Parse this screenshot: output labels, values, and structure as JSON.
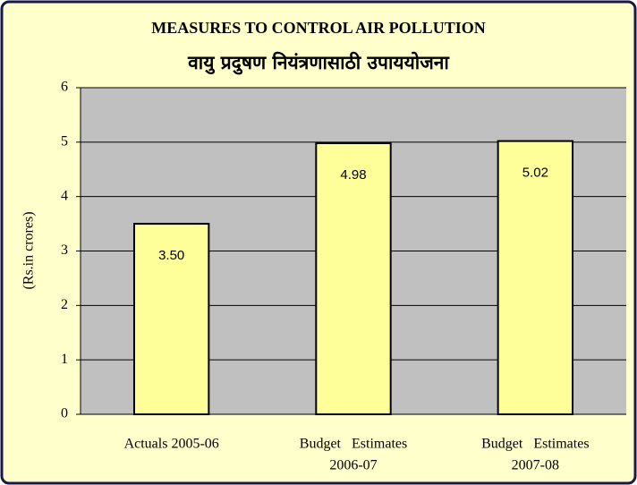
{
  "chart_data": {
    "type": "bar",
    "title": "MEASURES TO CONTROL AIR POLLUTION",
    "subtitle": "वायु प्रदुषण नियंत्रणासाठी उपाययोजना",
    "y_label": "(Rs.in crores)",
    "categories": [
      [
        "Actuals 2005-06"
      ],
      [
        "Budget   Estimates",
        "2006-07"
      ],
      [
        "Budget   Estimates",
        "2007-08"
      ]
    ],
    "values": [
      3.5,
      4.98,
      5.02
    ],
    "value_labels": [
      "3.50",
      "4.98",
      "5.02"
    ],
    "color": "#ffff99",
    "ylim": [
      0,
      6
    ],
    "yticks": [
      0,
      1,
      2,
      3,
      4,
      5,
      6
    ],
    "grid": true
  }
}
